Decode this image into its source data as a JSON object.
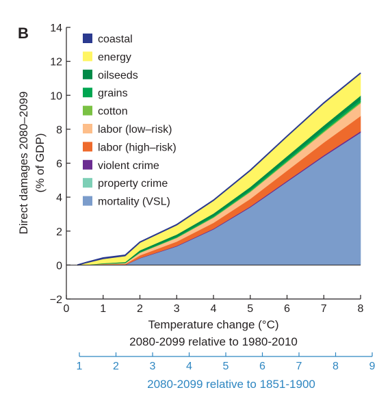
{
  "chart_data": {
    "type": "area",
    "panel_label": "B",
    "xlabel": "Temperature change (°C)",
    "xlabel_sub": "2080-2099 relative to 1980-2010",
    "ylabel": "Direct damages 2080–2099",
    "ylabel_sub": "(% of GDP)",
    "xlim": [
      0,
      8
    ],
    "ylim": [
      -2,
      14
    ],
    "xticks": [
      0,
      1,
      2,
      3,
      4,
      5,
      6,
      7,
      8
    ],
    "yticks": [
      -2,
      0,
      2,
      4,
      6,
      8,
      10,
      12,
      14
    ],
    "secondary_axis": {
      "label": "2080-2099 relative to 1851-1900",
      "ticks": [
        1,
        2,
        3,
        4,
        5,
        6,
        7,
        8,
        9
      ],
      "color": "#2e86c1"
    },
    "x": [
      0.3,
      0.5,
      1.0,
      1.6,
      2.0,
      3.0,
      4.0,
      5.0,
      6.0,
      7.0,
      8.0
    ],
    "legend_position": "top-left",
    "series": [
      {
        "name": "mortality (VSL)",
        "color": "#7b9ccb",
        "values": [
          0.0,
          0.0,
          0.02,
          0.0,
          0.4,
          1.1,
          2.1,
          3.4,
          4.9,
          6.4,
          7.8
        ]
      },
      {
        "name": "property crime",
        "color": "#7dcfb6",
        "values": [
          0.0,
          0.0,
          0.0,
          0.0,
          0.0,
          0.0,
          0.0,
          0.0,
          0.0,
          0.0,
          0.0
        ]
      },
      {
        "name": "violent crime",
        "color": "#6b2c91",
        "values": [
          0.0,
          0.0,
          0.0,
          0.01,
          0.02,
          0.03,
          0.04,
          0.05,
          0.06,
          0.07,
          0.08
        ]
      },
      {
        "name": "labor (high–risk)",
        "color": "#ee6a2c",
        "values": [
          0.0,
          0.0,
          0.03,
          0.05,
          0.15,
          0.25,
          0.35,
          0.45,
          0.6,
          0.75,
          0.9
        ]
      },
      {
        "name": "labor (low–risk)",
        "color": "#fdbe8a",
        "values": [
          0.0,
          0.0,
          0.02,
          0.05,
          0.15,
          0.22,
          0.3,
          0.4,
          0.5,
          0.6,
          0.75
        ]
      },
      {
        "name": "cotton",
        "color": "#7ac143",
        "values": [
          0.0,
          0.0,
          0.01,
          0.01,
          0.02,
          0.03,
          0.04,
          0.05,
          0.06,
          0.07,
          0.08
        ]
      },
      {
        "name": "grains",
        "color": "#00a651",
        "values": [
          0.0,
          0.0,
          0.01,
          0.02,
          0.03,
          0.05,
          0.07,
          0.09,
          0.11,
          0.13,
          0.15
        ]
      },
      {
        "name": "oilseeds",
        "color": "#008a47",
        "values": [
          0.0,
          0.0,
          0.02,
          0.04,
          0.1,
          0.12,
          0.14,
          0.16,
          0.18,
          0.2,
          0.22
        ]
      },
      {
        "name": "energy",
        "color": "#fff563",
        "values": [
          0.0,
          0.1,
          0.25,
          0.35,
          0.45,
          0.55,
          0.75,
          0.95,
          1.15,
          1.3,
          1.3
        ]
      },
      {
        "name": "coastal",
        "color": "#2b3a8f",
        "values": [
          0.0,
          0.03,
          0.06,
          0.05,
          0.03,
          0.03,
          0.03,
          0.03,
          0.03,
          0.03,
          0.03
        ]
      }
    ],
    "legend_order": [
      "coastal",
      "energy",
      "oilseeds",
      "grains",
      "cotton",
      "labor (low–risk)",
      "labor (high–risk)",
      "violent crime",
      "property crime",
      "mortality (VSL)"
    ]
  }
}
